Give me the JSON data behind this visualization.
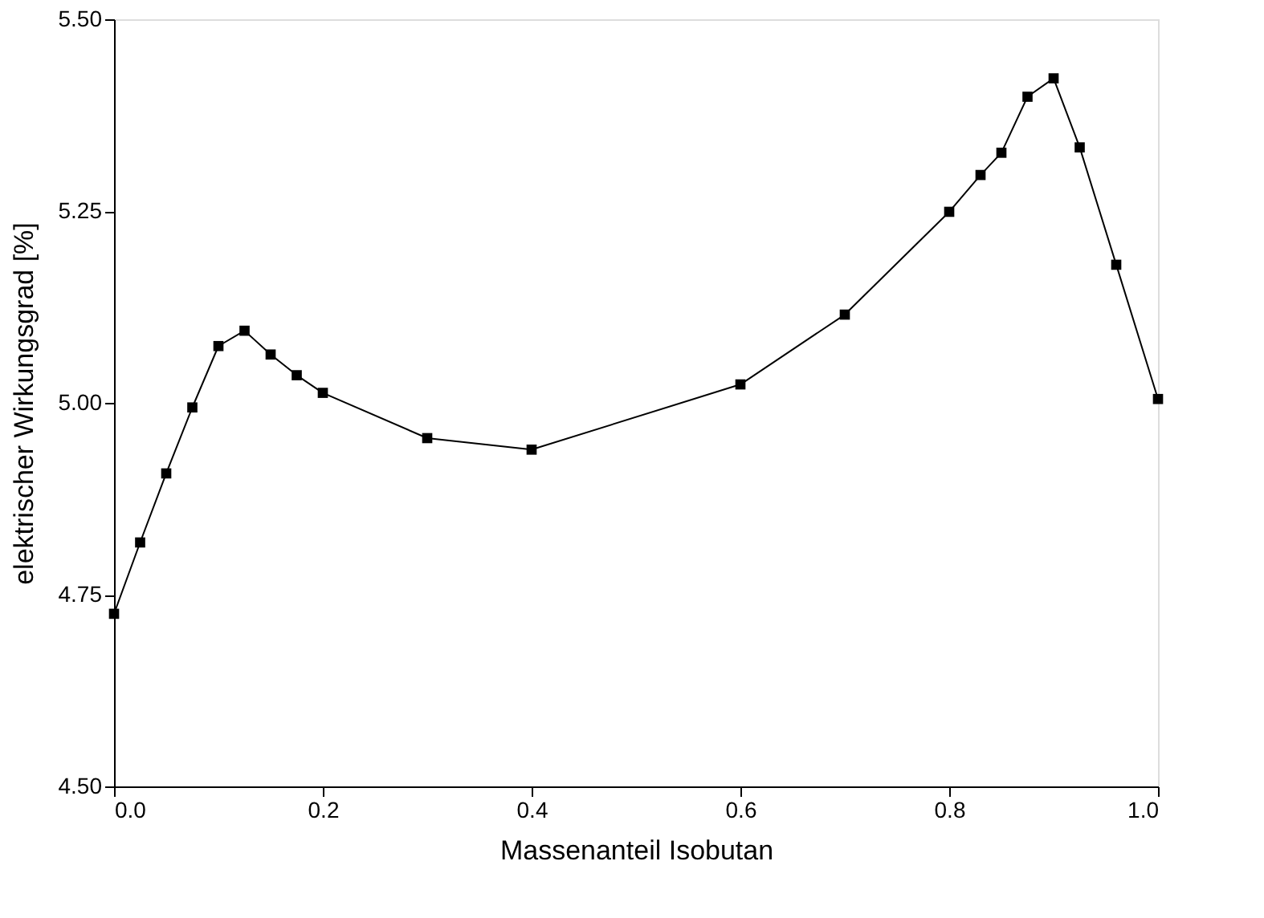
{
  "chart_data": {
    "type": "line",
    "xlabel": "Massenanteil Isobutan",
    "ylabel": "elektrischer Wirkungsgrad [%]",
    "x": [
      0,
      0.025,
      0.05,
      0.075,
      0.1,
      0.125,
      0.15,
      0.175,
      0.2,
      0.3,
      0.4,
      0.6,
      0.7,
      0.8,
      0.83,
      0.85,
      0.875,
      0.9,
      0.925,
      0.96,
      1.0
    ],
    "series": [
      {
        "color": "#000000",
        "values": [
          4.725,
          4.818,
          4.908,
          4.994,
          5.074,
          5.094,
          5.063,
          5.036,
          5.013,
          4.954,
          4.939,
          5.024,
          5.115,
          5.249,
          5.297,
          5.326,
          5.399,
          5.423,
          5.333,
          5.18,
          5.005
        ]
      }
    ],
    "xlim": [
      0,
      1
    ],
    "xticks": [
      {
        "value": 0,
        "label": "0.0"
      },
      0.2,
      0.4,
      0.6,
      0.8,
      {
        "value": 1,
        "label": "1.0"
      }
    ],
    "ylim": [
      4.5,
      5.5
    ],
    "yticks": [
      {
        "value": 4.5,
        "label": "4.50"
      },
      4.75,
      {
        "value": 5.0,
        "label": "5.00"
      },
      5.25,
      {
        "value": 5.5,
        "label": "5.50"
      }
    ],
    "marker": "square",
    "line_style": "solid",
    "grid": false
  }
}
